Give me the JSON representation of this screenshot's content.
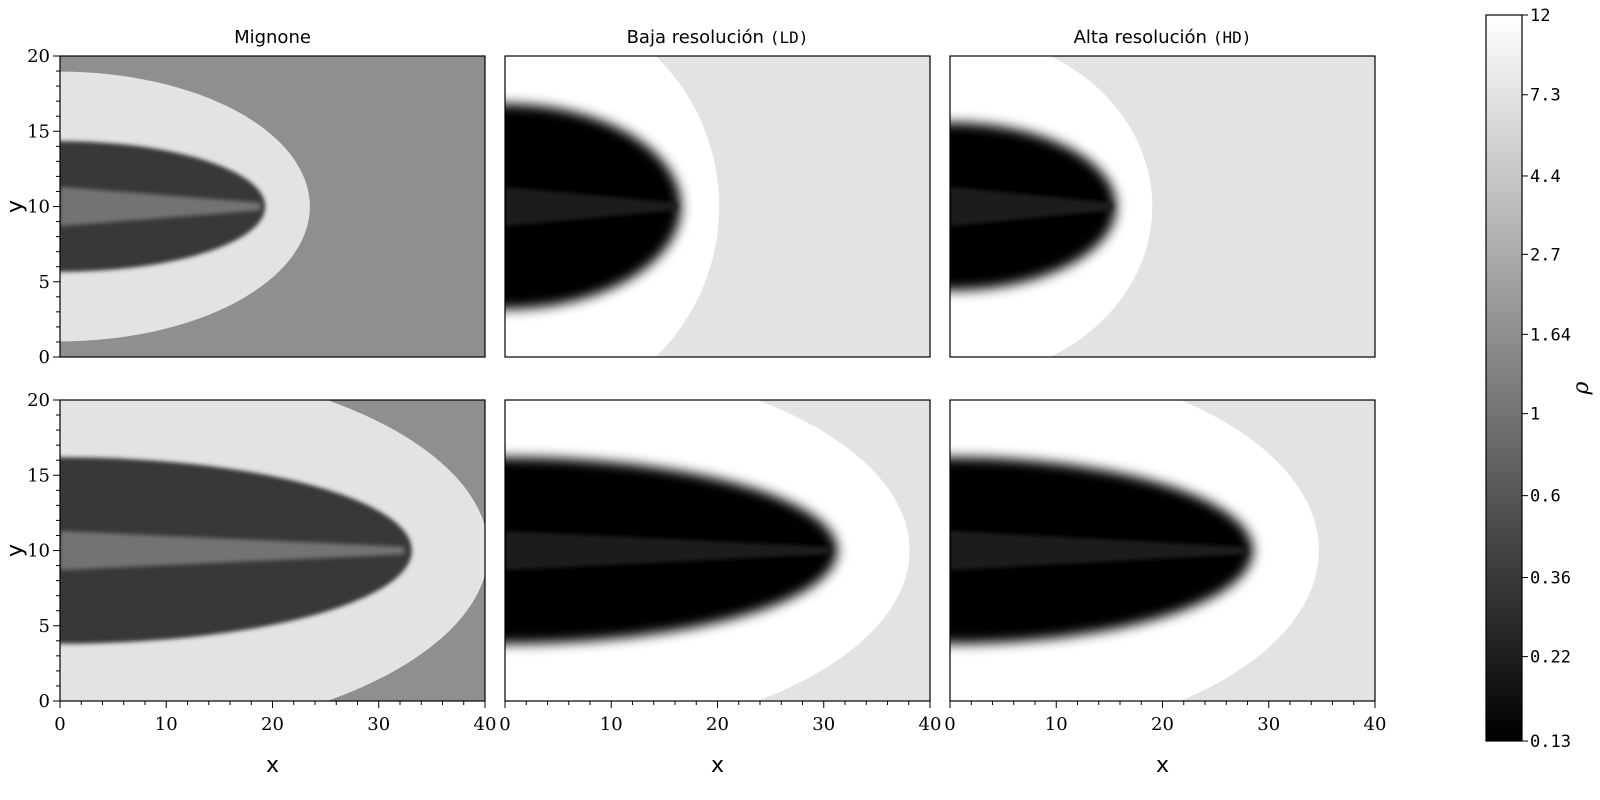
{
  "chart_data": [
    {
      "type": "heatmap",
      "title": "Mignone",
      "title_code": "",
      "row": 0,
      "col": 0,
      "xlim": [
        0,
        40
      ],
      "ylim": [
        0,
        20
      ],
      "xticks": [],
      "yticks": [
        "0",
        "5",
        "10",
        "15",
        "20"
      ],
      "xlabel": "",
      "ylabel": "y",
      "background_rho": 1.64,
      "cocoon": {
        "head_x": 21,
        "half_width": 7,
        "envelope_rho": 7.3,
        "interior_rho": 0.36,
        "jet_rho": 1
      }
    },
    {
      "type": "heatmap",
      "title": "Baja resolución",
      "title_code": "LD",
      "row": 0,
      "col": 1,
      "xlim": [
        0,
        40
      ],
      "ylim": [
        0,
        20
      ],
      "xticks": [],
      "yticks": [],
      "xlabel": "",
      "ylabel": "",
      "background_rho": 7.3,
      "cocoon": {
        "head_x": 18,
        "half_width": 11,
        "envelope_rho": 12,
        "interior_rho": 0.13,
        "jet_rho": 0.22
      }
    },
    {
      "type": "heatmap",
      "title": "Alta resolución",
      "title_code": "HD",
      "row": 0,
      "col": 2,
      "xlim": [
        0,
        40
      ],
      "ylim": [
        0,
        20
      ],
      "xticks": [],
      "yticks": [],
      "xlabel": "",
      "ylabel": "",
      "background_rho": 7.3,
      "cocoon": {
        "head_x": 17,
        "half_width": 9,
        "envelope_rho": 12,
        "interior_rho": 0.13,
        "jet_rho": 0.22
      }
    },
    {
      "type": "heatmap",
      "title": "",
      "title_code": "",
      "row": 1,
      "col": 0,
      "xlim": [
        0,
        40
      ],
      "ylim": [
        0,
        20
      ],
      "xticks": [
        "0",
        "10",
        "20",
        "30",
        "40"
      ],
      "yticks": [
        "0",
        "5",
        "10",
        "15",
        "20"
      ],
      "xlabel": "x",
      "ylabel": "y",
      "background_rho": 1.64,
      "cocoon": {
        "head_x": 36,
        "half_width": 10,
        "envelope_rho": 7.3,
        "interior_rho": 0.36,
        "jet_rho": 1
      }
    },
    {
      "type": "heatmap",
      "title": "",
      "title_code": "",
      "row": 1,
      "col": 1,
      "xlim": [
        0,
        40
      ],
      "ylim": [
        0,
        20
      ],
      "xticks": [
        "0",
        "10",
        "20",
        "30",
        "40"
      ],
      "yticks": [],
      "xlabel": "x",
      "ylabel": "",
      "background_rho": 7.3,
      "cocoon": {
        "head_x": 34,
        "half_width": 10,
        "envelope_rho": 12,
        "interior_rho": 0.13,
        "jet_rho": 0.22
      }
    },
    {
      "type": "heatmap",
      "title": "",
      "title_code": "",
      "row": 1,
      "col": 2,
      "xlim": [
        0,
        40
      ],
      "ylim": [
        0,
        20
      ],
      "xticks": [
        "0",
        "10",
        "20",
        "30",
        "40"
      ],
      "yticks": [],
      "xlabel": "x",
      "ylabel": "",
      "background_rho": 7.3,
      "cocoon": {
        "head_x": 31,
        "half_width": 10,
        "envelope_rho": 12,
        "interior_rho": 0.13,
        "jet_rho": 0.22
      }
    }
  ],
  "colorbar": {
    "label": "ρ",
    "ticks": [
      "12",
      "7.3",
      "4.4",
      "2.7",
      "1.64",
      "1",
      "0.6",
      "0.36",
      "0.22",
      "0.13"
    ],
    "colormap": "gray",
    "scale": "log",
    "range": [
      0.13,
      12
    ]
  }
}
